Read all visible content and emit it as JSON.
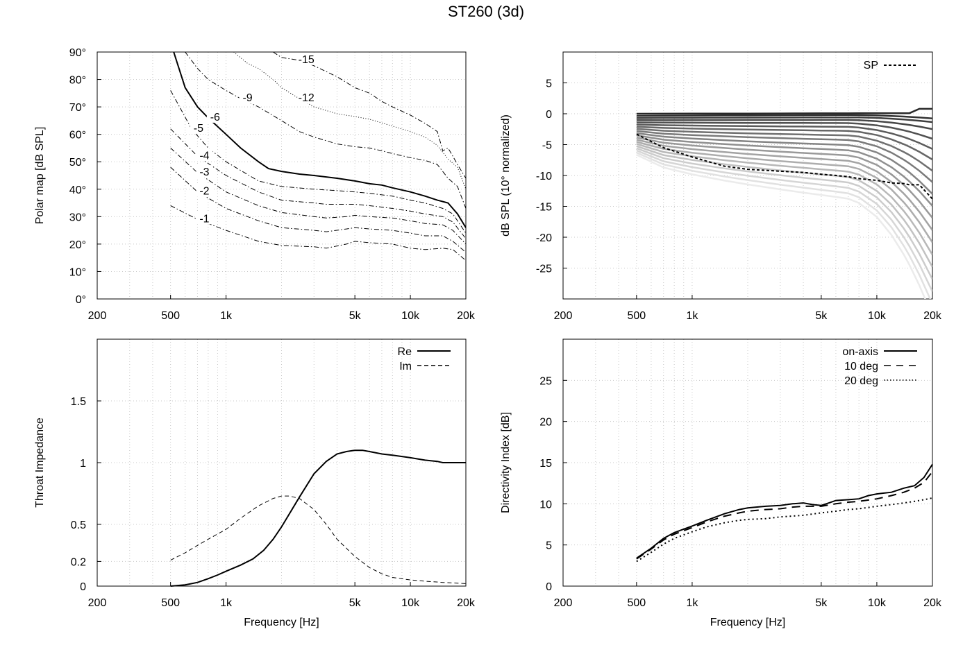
{
  "title": "ST260 (3d)",
  "chart_data": [
    {
      "type": "line",
      "panel": "polar_map",
      "ylabel": "Polar map [dB SPL]",
      "xlabel": "",
      "x_scale": "log",
      "xlim": [
        200,
        20000
      ],
      "ylim": [
        0,
        90
      ],
      "x_ticks": [
        200,
        500,
        1000,
        5000,
        10000,
        20000
      ],
      "x_tick_labels": [
        "200",
        "500",
        "1k",
        "5k",
        "10k",
        "20k"
      ],
      "y_ticks": [
        0,
        10,
        20,
        30,
        40,
        50,
        60,
        70,
        80,
        90
      ],
      "y_tick_labels": [
        "0°",
        "10°",
        "20°",
        "30°",
        "40°",
        "50°",
        "60°",
        "70°",
        "80°",
        "90°"
      ],
      "grid": true,
      "series": [
        {
          "name": "-1",
          "style": "dashdot",
          "x": [
            500,
            700,
            1000,
            1500,
            2000,
            3000,
            3500,
            4500,
            5000,
            6000,
            8000,
            10000,
            12000,
            15000,
            17000,
            20000
          ],
          "y": [
            34,
            29,
            25,
            21,
            19.5,
            19,
            18.5,
            20,
            21,
            20.5,
            20,
            18.5,
            18,
            18.5,
            18,
            14
          ]
        },
        {
          "name": "-2",
          "style": "dashdot",
          "x": [
            500,
            700,
            1000,
            1500,
            2000,
            3000,
            3500,
            4500,
            5000,
            6000,
            8000,
            10000,
            12000,
            15000,
            17000,
            20000
          ],
          "y": [
            48,
            39,
            33,
            28.5,
            26,
            25,
            24.5,
            25.5,
            26,
            25.5,
            25,
            24,
            23,
            23,
            21,
            17
          ]
        },
        {
          "name": "-3",
          "style": "dashdot",
          "x": [
            500,
            700,
            1000,
            1500,
            2000,
            3000,
            3500,
            4500,
            5000,
            6000,
            8000,
            10000,
            12000,
            15000,
            17000,
            20000
          ],
          "y": [
            55,
            46,
            39,
            34,
            31.5,
            30,
            29.5,
            30,
            30.5,
            30,
            29.5,
            28.5,
            27.5,
            27,
            25,
            20
          ]
        },
        {
          "name": "-4",
          "style": "dashdot",
          "x": [
            500,
            700,
            1000,
            1500,
            2000,
            3000,
            3500,
            4500,
            5000,
            6000,
            8000,
            10000,
            12000,
            15000,
            17000,
            20000
          ],
          "y": [
            62,
            52,
            45,
            39,
            36,
            35,
            34.5,
            34.5,
            34.5,
            34,
            33,
            32,
            31,
            30,
            28,
            22
          ]
        },
        {
          "name": "-5",
          "style": "dashdot",
          "x": [
            500,
            650,
            800,
            1000,
            1500,
            2000,
            3000,
            4000,
            5000,
            6000,
            8000,
            10000,
            12000,
            15000,
            17000,
            20000
          ],
          "y": [
            76,
            62,
            55,
            50,
            43,
            41,
            40,
            39.5,
            39,
            38.5,
            37.5,
            36,
            35,
            33,
            31,
            24
          ]
        },
        {
          "name": "-6",
          "style": "solid",
          "x": [
            520,
            600,
            700,
            800,
            1000,
            1200,
            1500,
            1700,
            2000,
            2500,
            3000,
            4000,
            5000,
            6000,
            7000,
            8000,
            10000,
            12000,
            14000,
            15000,
            16000,
            18000,
            20000
          ],
          "y": [
            90,
            77,
            70,
            66,
            60,
            55,
            50,
            47.5,
            46.5,
            45.5,
            45,
            44,
            43,
            42,
            41.5,
            40.5,
            39,
            37.5,
            36,
            35.5,
            35,
            31,
            26
          ]
        },
        {
          "name": "-9",
          "style": "dashdot",
          "x": [
            600,
            700,
            800,
            1000,
            1200,
            1500,
            2000,
            2500,
            3000,
            4000,
            5000,
            6000,
            7000,
            8000,
            10000,
            12000,
            14000,
            16000,
            18000,
            20000
          ],
          "y": [
            90,
            84,
            80,
            76,
            73,
            70,
            65,
            61,
            59,
            56.5,
            55.5,
            55,
            54,
            53,
            51.5,
            50.5,
            49,
            44,
            41,
            33
          ]
        },
        {
          "name": "-12",
          "style": "dotted",
          "x": [
            1100,
            1300,
            1500,
            1800,
            2000,
            2500,
            3000,
            4000,
            5000,
            6000,
            8000,
            10000,
            12000,
            14000,
            16000,
            18000,
            20000
          ],
          "y": [
            90,
            86,
            84,
            80,
            77,
            73,
            70,
            67.5,
            66.5,
            65.5,
            63,
            61,
            59,
            56,
            51,
            48,
            40
          ]
        },
        {
          "name": "-15",
          "style": "dashdot",
          "x": [
            1800,
            2000,
            2500,
            3000,
            4000,
            5000,
            6000,
            7000,
            8000,
            10000,
            12000,
            14000,
            15000,
            16000,
            17000,
            18000,
            20000
          ],
          "y": [
            90,
            88,
            87,
            85,
            81,
            77,
            75,
            72,
            70,
            67,
            64,
            61,
            54,
            55,
            52,
            49,
            44
          ]
        }
      ],
      "contour_labels": [
        "-1",
        "-2",
        "-3",
        "-4",
        "-5",
        "-6",
        "-9",
        "-12",
        "-15"
      ]
    },
    {
      "type": "line",
      "panel": "normalized_spl",
      "ylabel": "dB SPL (10° normalized)",
      "xlabel": "",
      "x_scale": "log",
      "xlim": [
        200,
        20000
      ],
      "ylim": [
        -30,
        10
      ],
      "x_ticks": [
        200,
        500,
        1000,
        5000,
        10000,
        20000
      ],
      "x_tick_labels": [
        "200",
        "500",
        "1k",
        "5k",
        "10k",
        "20k"
      ],
      "y_ticks": [
        -25,
        -20,
        -15,
        -10,
        -5,
        0,
        5
      ],
      "y_tick_labels": [
        "-25",
        "-20",
        "-15",
        "-10",
        "-5",
        "0",
        "5"
      ],
      "grid": true,
      "legend": {
        "position": "top-right",
        "entries": [
          "SP"
        ]
      },
      "x": [
        500,
        700,
        1000,
        1500,
        2000,
        3000,
        4000,
        5000,
        6000,
        7000,
        8000,
        10000,
        12000,
        14000,
        15000,
        17000,
        20000
      ],
      "series": [
        {
          "name": "SP",
          "style": "dashed",
          "y": [
            -3.3,
            -5.5,
            -7,
            -8.5,
            -9,
            -9.3,
            -9.5,
            -9.8,
            -10,
            -10.2,
            -10.5,
            -10.8,
            -11.2,
            -11.3,
            -11.5,
            -11.5,
            -13.8
          ]
        }
      ],
      "family_end_values": [
        0,
        -0.3,
        -1,
        -1.8,
        -2.8,
        -4,
        -5.3,
        -6.8,
        -8.3,
        -10,
        -11.7,
        -13.4,
        -15.2,
        -17,
        -18.8,
        -20.6,
        -22.4,
        -24.2,
        -26,
        -27.8
      ],
      "family_high_drop": [
        0.8,
        0.6,
        0.8,
        1.5,
        2.5,
        3.5,
        4.5,
        5.5,
        6.5,
        7.5,
        8.5,
        9.5,
        10.5,
        11.5,
        12.5,
        13.5,
        14.5,
        15.5,
        16.5,
        17.5
      ]
    },
    {
      "type": "line",
      "panel": "throat_impedance",
      "ylabel": "Throat Impedance",
      "xlabel": "Frequency [Hz]",
      "x_scale": "log",
      "xlim": [
        200,
        20000
      ],
      "ylim": [
        0,
        2
      ],
      "x_ticks": [
        200,
        500,
        1000,
        5000,
        10000,
        20000
      ],
      "x_tick_labels": [
        "200",
        "500",
        "1k",
        "5k",
        "10k",
        "20k"
      ],
      "y_ticks": [
        0,
        0.2,
        0.5,
        1,
        1.5
      ],
      "y_tick_labels": [
        "0",
        "0.2",
        "0.5",
        "1",
        "1.5"
      ],
      "grid": true,
      "legend": {
        "position": "top-right",
        "entries": [
          "Re",
          "Im"
        ]
      },
      "series": [
        {
          "name": "Re",
          "style": "solid",
          "x": [
            500,
            600,
            700,
            800,
            900,
            1000,
            1200,
            1400,
            1600,
            1800,
            2000,
            2500,
            3000,
            3500,
            4000,
            4500,
            5000,
            5500,
            6000,
            7000,
            8000,
            9000,
            10000,
            12000,
            14000,
            15000,
            16000,
            18000,
            20000
          ],
          "y": [
            0.0,
            0.01,
            0.03,
            0.06,
            0.09,
            0.12,
            0.17,
            0.22,
            0.29,
            0.38,
            0.48,
            0.72,
            0.91,
            1.01,
            1.07,
            1.09,
            1.1,
            1.1,
            1.09,
            1.07,
            1.06,
            1.05,
            1.04,
            1.02,
            1.01,
            1.0,
            1.0,
            1.0,
            1.0
          ]
        },
        {
          "name": "Im",
          "style": "dashed",
          "x": [
            500,
            600,
            700,
            800,
            1000,
            1200,
            1500,
            1800,
            2000,
            2200,
            2500,
            3000,
            3500,
            4000,
            5000,
            6000,
            7000,
            8000,
            10000,
            12000,
            15000,
            20000
          ],
          "y": [
            0.21,
            0.27,
            0.33,
            0.38,
            0.46,
            0.55,
            0.65,
            0.71,
            0.73,
            0.73,
            0.71,
            0.62,
            0.5,
            0.38,
            0.24,
            0.15,
            0.1,
            0.07,
            0.05,
            0.04,
            0.03,
            0.02
          ]
        }
      ]
    },
    {
      "type": "line",
      "panel": "directivity_index",
      "ylabel": "Directivity Index [dB]",
      "xlabel": "Frequency [Hz]",
      "x_scale": "log",
      "xlim": [
        200,
        20000
      ],
      "ylim": [
        0,
        30
      ],
      "x_ticks": [
        200,
        500,
        1000,
        5000,
        10000,
        20000
      ],
      "x_tick_labels": [
        "200",
        "500",
        "1k",
        "5k",
        "10k",
        "20k"
      ],
      "y_ticks": [
        0,
        5,
        10,
        15,
        20,
        25
      ],
      "y_tick_labels": [
        "0",
        "5",
        "10",
        "15",
        "20",
        "25"
      ],
      "grid": true,
      "legend": {
        "position": "top-right",
        "entries": [
          "on-axis",
          "10 deg",
          "20 deg"
        ]
      },
      "series": [
        {
          "name": "on-axis",
          "style": "solid",
          "x": [
            500,
            600,
            700,
            800,
            1000,
            1200,
            1500,
            1800,
            2000,
            2500,
            3000,
            3500,
            4000,
            4500,
            5000,
            5500,
            6000,
            7000,
            8000,
            9000,
            10000,
            12000,
            14000,
            16000,
            18000,
            20000
          ],
          "y": [
            3.4,
            4.6,
            5.8,
            6.5,
            7.3,
            8.0,
            8.8,
            9.3,
            9.5,
            9.7,
            9.8,
            10.0,
            10.1,
            9.9,
            9.8,
            10.1,
            10.4,
            10.5,
            10.6,
            11.0,
            11.2,
            11.4,
            11.9,
            12.2,
            13.2,
            14.8
          ]
        },
        {
          "name": "10 deg",
          "style": "dashed",
          "x": [
            500,
            600,
            700,
            800,
            1000,
            1200,
            1500,
            1800,
            2000,
            2500,
            3000,
            3500,
            4000,
            5000,
            6000,
            7000,
            8000,
            10000,
            12000,
            14000,
            16000,
            18000,
            20000
          ],
          "y": [
            3.3,
            4.5,
            5.6,
            6.3,
            7.1,
            7.8,
            8.5,
            8.9,
            9.1,
            9.3,
            9.4,
            9.6,
            9.7,
            9.7,
            10.0,
            10.2,
            10.3,
            10.6,
            11.0,
            11.4,
            11.9,
            12.6,
            13.9
          ]
        },
        {
          "name": "20 deg",
          "style": "dotted",
          "x": [
            500,
            600,
            700,
            800,
            1000,
            1200,
            1500,
            1800,
            2000,
            2500,
            3000,
            4000,
            5000,
            6000,
            7000,
            8000,
            10000,
            12000,
            14000,
            16000,
            18000,
            20000
          ],
          "y": [
            3.0,
            4.1,
            5.1,
            5.8,
            6.6,
            7.2,
            7.7,
            8.0,
            8.1,
            8.2,
            8.4,
            8.6,
            8.9,
            9.1,
            9.3,
            9.4,
            9.7,
            9.9,
            10.1,
            10.3,
            10.5,
            10.7
          ]
        }
      ]
    }
  ]
}
